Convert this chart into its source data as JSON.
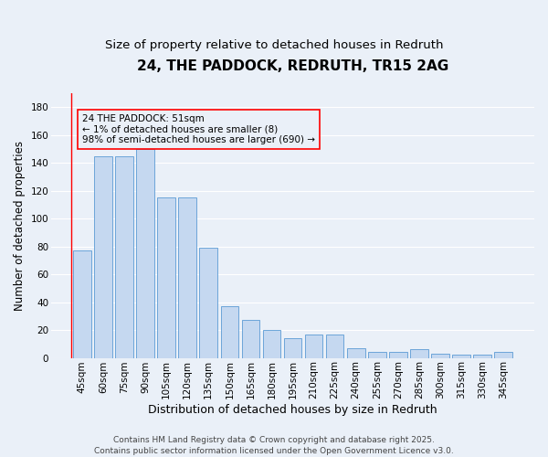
{
  "title": "24, THE PADDOCK, REDRUTH, TR15 2AG",
  "subtitle": "Size of property relative to detached houses in Redruth",
  "xlabel": "Distribution of detached houses by size in Redruth",
  "ylabel": "Number of detached properties",
  "categories": [
    "45sqm",
    "60sqm",
    "75sqm",
    "90sqm",
    "105sqm",
    "120sqm",
    "135sqm",
    "150sqm",
    "165sqm",
    "180sqm",
    "195sqm",
    "210sqm",
    "225sqm",
    "240sqm",
    "255sqm",
    "270sqm",
    "285sqm",
    "300sqm",
    "315sqm",
    "330sqm",
    "345sqm"
  ],
  "values": [
    77,
    145,
    145,
    150,
    115,
    115,
    79,
    37,
    27,
    20,
    14,
    17,
    17,
    7,
    4,
    4,
    6,
    3,
    2,
    2,
    4
  ],
  "bar_color": "#c5d8f0",
  "bar_edge_color": "#5b9bd5",
  "background_color": "#eaf0f8",
  "grid_color": "#ffffff",
  "annotation_text": "24 THE PADDOCK: 51sqm\n← 1% of detached houses are smaller (8)\n98% of semi-detached houses are larger (690) →",
  "ylim": [
    0,
    190
  ],
  "yticks": [
    0,
    20,
    40,
    60,
    80,
    100,
    120,
    140,
    160,
    180
  ],
  "footer_text": "Contains HM Land Registry data © Crown copyright and database right 2025.\nContains public sector information licensed under the Open Government Licence v3.0.",
  "title_fontsize": 11,
  "subtitle_fontsize": 9.5,
  "xlabel_fontsize": 9,
  "ylabel_fontsize": 8.5,
  "tick_fontsize": 7.5,
  "annotation_fontsize": 7.5,
  "footer_fontsize": 6.5
}
